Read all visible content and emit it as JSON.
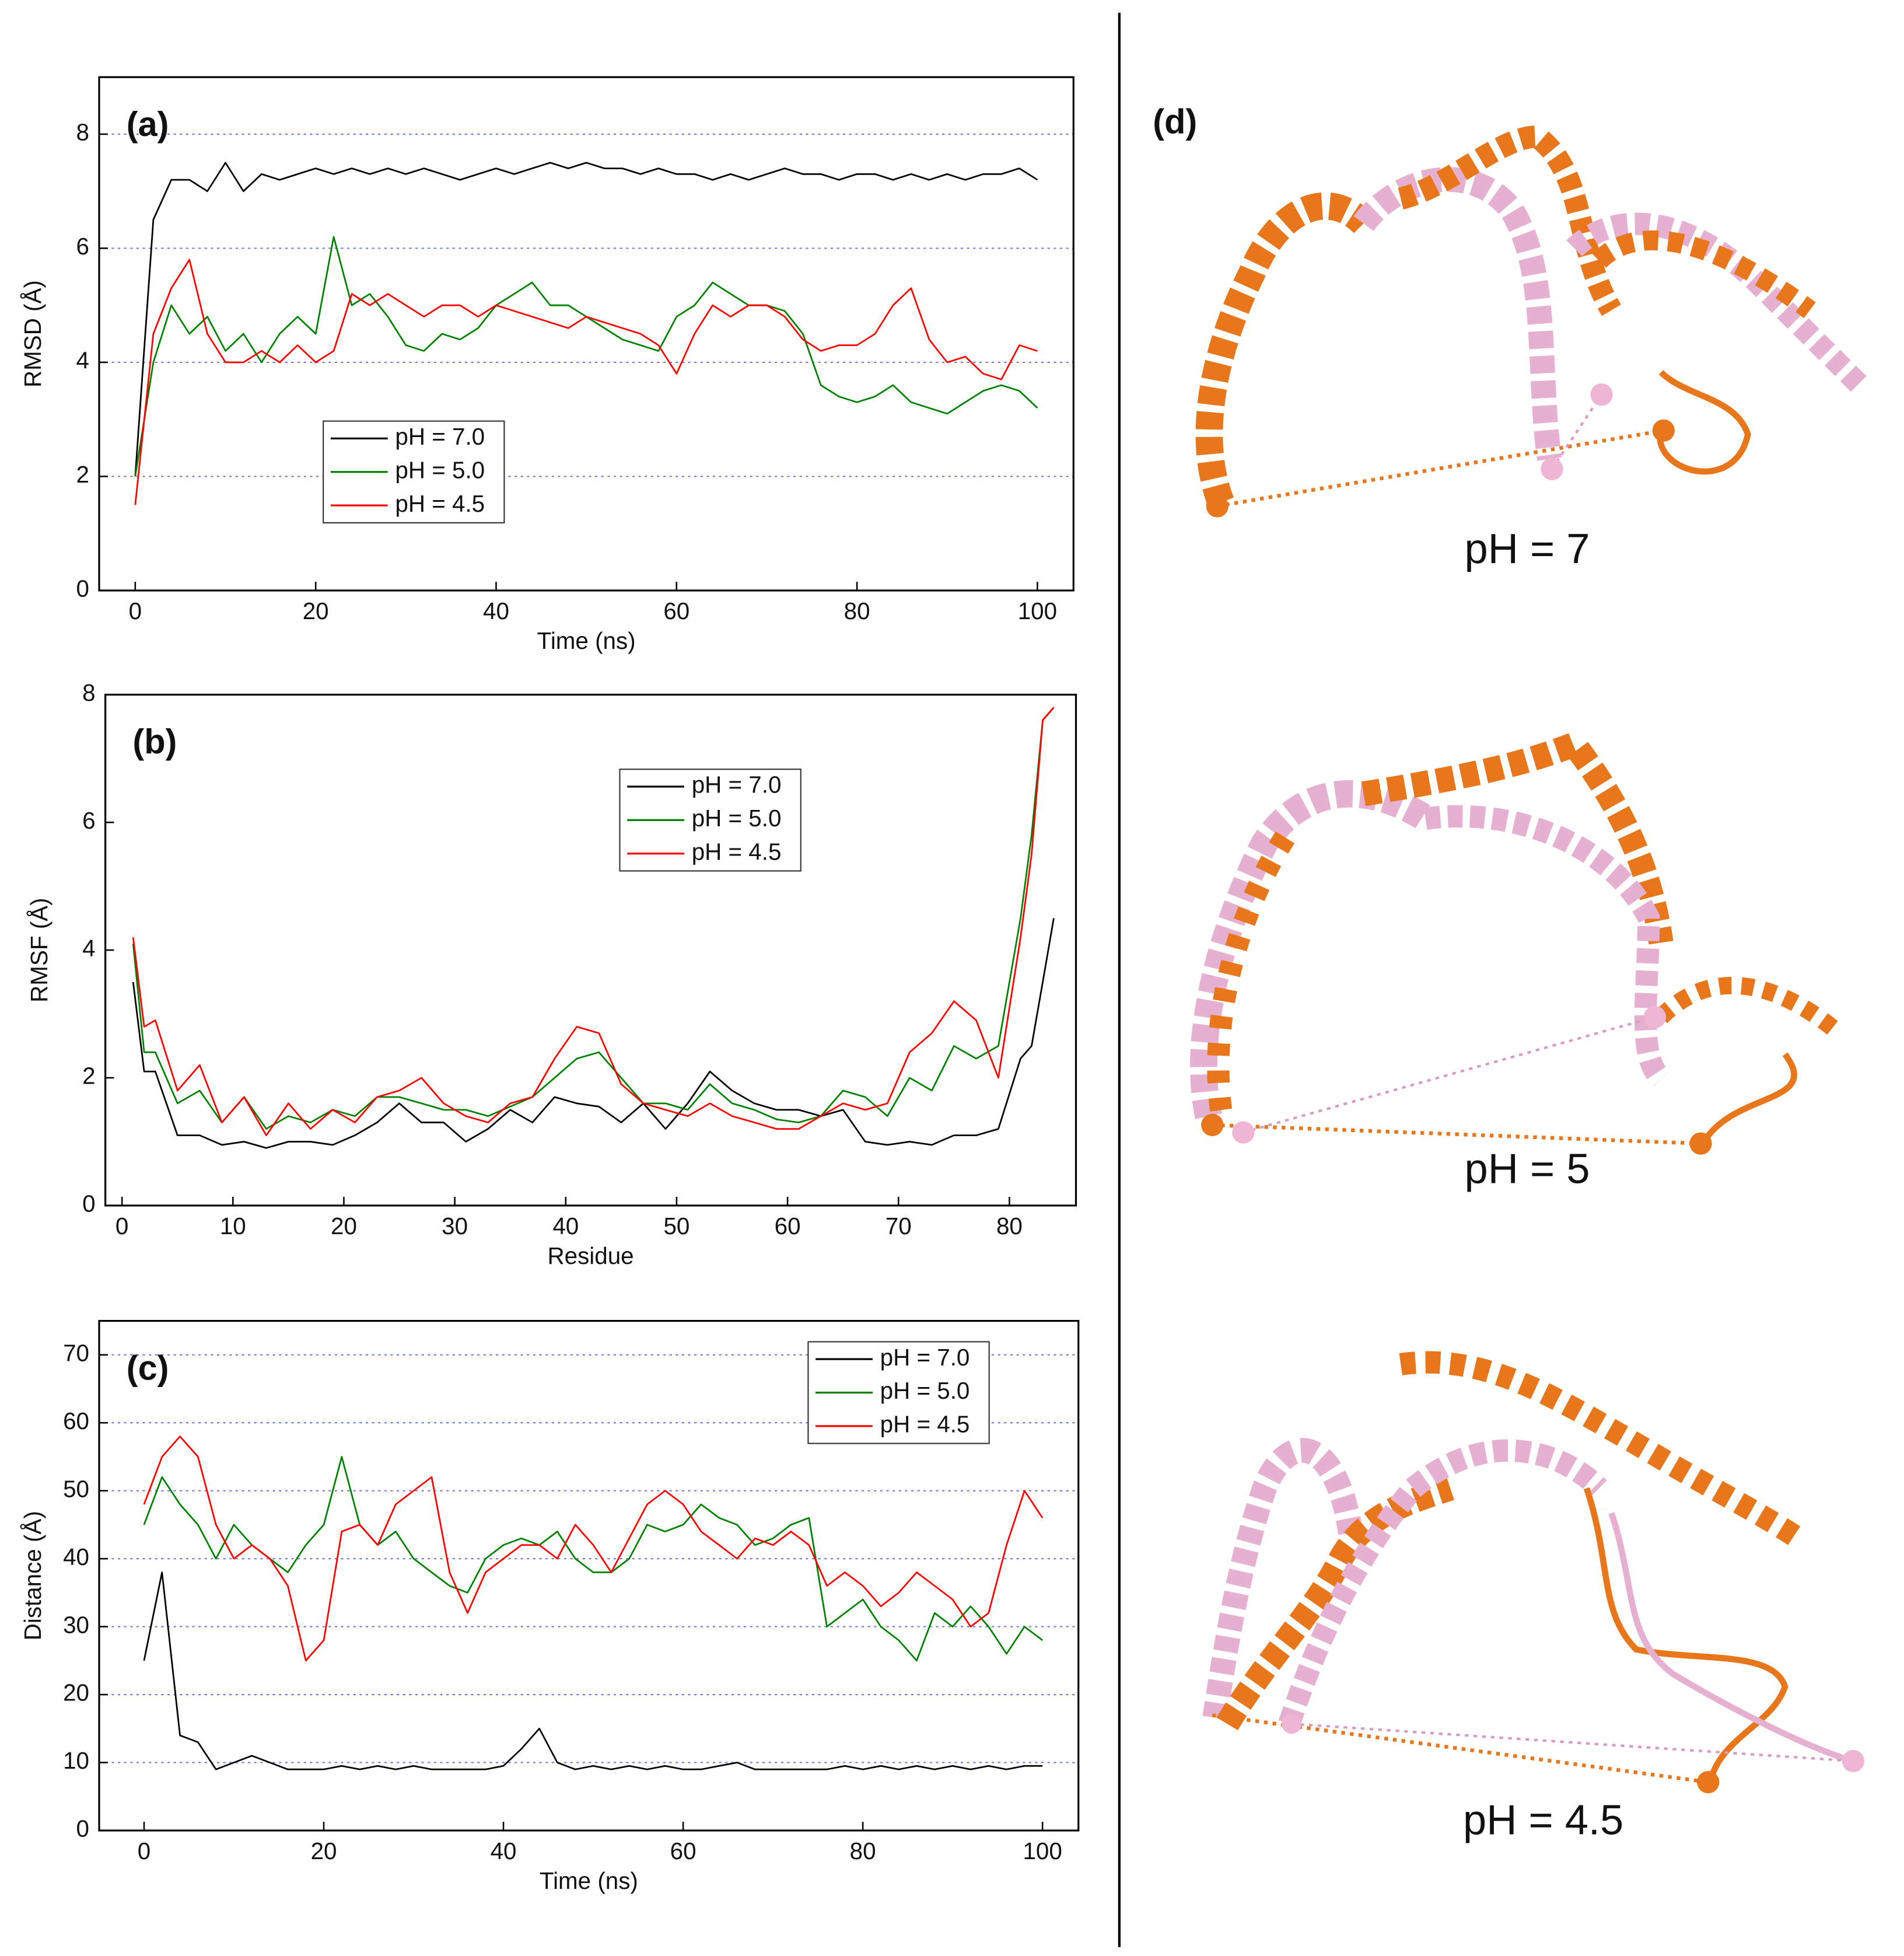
{
  "chart_data": [
    {
      "type": "line",
      "panel_label": "(a)",
      "x_label": "Time (ns)",
      "y_label": "RMSD (Å)",
      "xlim": [
        -4,
        104
      ],
      "xticks": [
        0,
        20,
        40,
        60,
        80,
        100
      ],
      "ylim": [
        0,
        9
      ],
      "yticks": [
        0,
        2,
        4,
        6,
        8
      ],
      "grid": true,
      "legend": "lower left",
      "x": [
        0,
        2,
        4,
        6,
        8,
        10,
        12,
        14,
        16,
        18,
        20,
        22,
        24,
        26,
        28,
        30,
        32,
        34,
        36,
        38,
        40,
        42,
        44,
        46,
        48,
        50,
        52,
        54,
        56,
        58,
        60,
        62,
        64,
        66,
        68,
        70,
        72,
        74,
        76,
        78,
        80,
        82,
        84,
        86,
        88,
        90,
        92,
        94,
        96,
        98,
        100
      ],
      "series": [
        {
          "name": "pH = 7.0",
          "color": "#000000",
          "values": [
            2.0,
            6.5,
            7.2,
            7.2,
            7.0,
            7.5,
            7.0,
            7.3,
            7.2,
            7.3,
            7.4,
            7.3,
            7.4,
            7.3,
            7.4,
            7.3,
            7.4,
            7.3,
            7.2,
            7.3,
            7.4,
            7.3,
            7.4,
            7.5,
            7.4,
            7.5,
            7.4,
            7.4,
            7.3,
            7.4,
            7.3,
            7.3,
            7.2,
            7.3,
            7.2,
            7.3,
            7.4,
            7.3,
            7.3,
            7.2,
            7.3,
            7.3,
            7.2,
            7.3,
            7.2,
            7.3,
            7.2,
            7.3,
            7.3,
            7.4,
            7.2
          ]
        },
        {
          "name": "pH = 5.0",
          "color": "#008000",
          "values": [
            2.0,
            4.0,
            5.0,
            4.5,
            4.8,
            4.2,
            4.5,
            4.0,
            4.5,
            4.8,
            4.5,
            6.2,
            5.0,
            5.2,
            4.8,
            4.3,
            4.2,
            4.5,
            4.4,
            4.6,
            5.0,
            5.2,
            5.4,
            5.0,
            5.0,
            4.8,
            4.6,
            4.4,
            4.3,
            4.2,
            4.8,
            5.0,
            5.4,
            5.2,
            5.0,
            5.0,
            4.9,
            4.5,
            3.6,
            3.4,
            3.3,
            3.4,
            3.6,
            3.3,
            3.2,
            3.1,
            3.3,
            3.5,
            3.6,
            3.5,
            3.2
          ]
        },
        {
          "name": "pH = 4.5",
          "color": "#ff0000",
          "values": [
            1.5,
            4.5,
            5.3,
            5.8,
            4.5,
            4.0,
            4.0,
            4.2,
            4.0,
            4.3,
            4.0,
            4.2,
            5.2,
            5.0,
            5.2,
            5.0,
            4.8,
            5.0,
            5.0,
            4.8,
            5.0,
            4.9,
            4.8,
            4.7,
            4.6,
            4.8,
            4.7,
            4.6,
            4.5,
            4.3,
            3.8,
            4.5,
            5.0,
            4.8,
            5.0,
            5.0,
            4.8,
            4.4,
            4.2,
            4.3,
            4.3,
            4.5,
            5.0,
            5.3,
            4.4,
            4.0,
            4.1,
            3.8,
            3.7,
            4.3,
            4.2
          ]
        }
      ]
    },
    {
      "type": "line",
      "panel_label": "(b)",
      "x_label": "Residue",
      "y_label": "RMSF (Å)",
      "xlim": [
        -1.5,
        86
      ],
      "xticks": [
        0,
        10,
        20,
        30,
        40,
        50,
        60,
        70,
        80
      ],
      "ylim": [
        0,
        8
      ],
      "yticks": [
        0,
        2,
        4,
        6,
        8
      ],
      "grid": false,
      "legend": "upper center",
      "x": [
        1,
        2,
        3,
        5,
        7,
        9,
        11,
        13,
        15,
        17,
        19,
        21,
        23,
        25,
        27,
        29,
        31,
        33,
        35,
        37,
        39,
        41,
        43,
        45,
        47,
        49,
        51,
        53,
        55,
        57,
        59,
        61,
        63,
        65,
        67,
        69,
        71,
        73,
        75,
        77,
        79,
        81,
        82,
        83,
        84
      ],
      "series": [
        {
          "name": "pH = 7.0",
          "color": "#000000",
          "values": [
            3.5,
            2.1,
            2.1,
            1.1,
            1.1,
            0.95,
            1.0,
            0.9,
            1.0,
            1.0,
            0.95,
            1.1,
            1.3,
            1.6,
            1.3,
            1.3,
            1.0,
            1.2,
            1.5,
            1.3,
            1.7,
            1.6,
            1.55,
            1.3,
            1.6,
            1.2,
            1.6,
            2.1,
            1.8,
            1.6,
            1.5,
            1.5,
            1.4,
            1.5,
            1.0,
            0.95,
            1.0,
            0.95,
            1.1,
            1.1,
            1.2,
            2.3,
            2.5,
            3.5,
            4.5
          ]
        },
        {
          "name": "pH = 5.0",
          "color": "#008000",
          "values": [
            4.1,
            2.4,
            2.4,
            1.6,
            1.8,
            1.3,
            1.7,
            1.2,
            1.4,
            1.3,
            1.5,
            1.4,
            1.7,
            1.7,
            1.6,
            1.5,
            1.5,
            1.4,
            1.55,
            1.7,
            2.0,
            2.3,
            2.4,
            2.0,
            1.6,
            1.6,
            1.5,
            1.9,
            1.6,
            1.5,
            1.35,
            1.3,
            1.4,
            1.8,
            1.7,
            1.4,
            2.0,
            1.8,
            2.5,
            2.3,
            2.5,
            4.5,
            5.8,
            7.6,
            7.8
          ]
        },
        {
          "name": "pH = 4.5",
          "color": "#ff0000",
          "values": [
            4.2,
            2.8,
            2.9,
            1.8,
            2.2,
            1.3,
            1.7,
            1.1,
            1.6,
            1.2,
            1.5,
            1.3,
            1.7,
            1.8,
            2.0,
            1.6,
            1.4,
            1.3,
            1.6,
            1.7,
            2.3,
            2.8,
            2.7,
            1.9,
            1.6,
            1.5,
            1.4,
            1.6,
            1.4,
            1.3,
            1.2,
            1.2,
            1.4,
            1.6,
            1.5,
            1.6,
            2.4,
            2.7,
            3.2,
            2.9,
            2.0,
            4.2,
            5.5,
            7.6,
            7.8
          ]
        }
      ]
    },
    {
      "type": "line",
      "panel_label": "(c)",
      "x_label": "Time (ns)",
      "y_label": "Distance (Å)",
      "xlim": [
        -5,
        104
      ],
      "xticks": [
        0,
        20,
        40,
        60,
        80,
        100
      ],
      "ylim": [
        0,
        75
      ],
      "yticks": [
        0,
        10,
        20,
        30,
        40,
        50,
        60,
        70
      ],
      "grid": true,
      "legend": "upper right",
      "x": [
        0,
        2,
        4,
        6,
        8,
        10,
        12,
        14,
        16,
        18,
        20,
        22,
        24,
        26,
        28,
        30,
        32,
        34,
        36,
        38,
        40,
        42,
        44,
        46,
        48,
        50,
        52,
        54,
        56,
        58,
        60,
        62,
        64,
        66,
        68,
        70,
        72,
        74,
        76,
        78,
        80,
        82,
        84,
        86,
        88,
        90,
        92,
        94,
        96,
        98,
        100
      ],
      "series": [
        {
          "name": "pH = 7.0",
          "color": "#000000",
          "values": [
            25,
            38,
            14,
            13,
            9,
            10,
            11,
            10,
            9,
            9,
            9,
            9.5,
            9,
            9.5,
            9,
            9.5,
            9,
            9,
            9,
            9,
            9.5,
            12,
            15,
            10,
            9,
            9.5,
            9,
            9.5,
            9,
            9.5,
            9,
            9,
            9.5,
            10,
            9,
            9,
            9,
            9,
            9,
            9.5,
            9,
            9.5,
            9,
            9.5,
            9,
            9.5,
            9,
            9.5,
            9,
            9.5,
            9.5
          ]
        },
        {
          "name": "pH = 5.0",
          "color": "#008000",
          "values": [
            45,
            52,
            48,
            45,
            40,
            45,
            42,
            40,
            38,
            42,
            45,
            55,
            45,
            42,
            44,
            40,
            38,
            36,
            35,
            40,
            42,
            43,
            42,
            44,
            40,
            38,
            38,
            40,
            45,
            44,
            45,
            48,
            46,
            45,
            42,
            43,
            45,
            46,
            30,
            32,
            34,
            30,
            28,
            25,
            32,
            30,
            33,
            30,
            26,
            30,
            28
          ]
        },
        {
          "name": "pH = 4.5",
          "color": "#ff0000",
          "values": [
            48,
            55,
            58,
            55,
            45,
            40,
            42,
            40,
            36,
            25,
            28,
            44,
            45,
            42,
            48,
            50,
            52,
            38,
            32,
            38,
            40,
            42,
            42,
            40,
            45,
            42,
            38,
            43,
            48,
            50,
            48,
            44,
            42,
            40,
            43,
            42,
            44,
            42,
            36,
            38,
            36,
            33,
            35,
            38,
            36,
            34,
            30,
            32,
            42,
            50,
            46
          ]
        }
      ]
    }
  ],
  "panel_d": {
    "label": "(d)",
    "captions": [
      "pH = 7",
      "pH = 5",
      "pH = 4.5"
    ]
  }
}
